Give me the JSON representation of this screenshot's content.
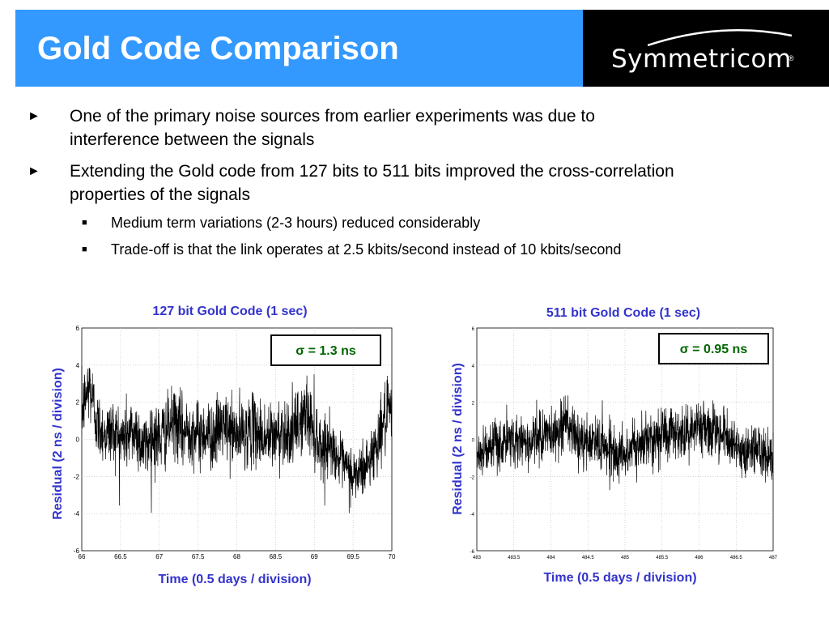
{
  "title": "Gold Code Comparison",
  "logo": {
    "text": "Symmetricom",
    "reg": "®"
  },
  "bullets": [
    {
      "line1": "One of the primary noise sources from earlier experiments was due to",
      "line2": "interference between the signals"
    },
    {
      "line1": "Extending the Gold code from 127 bits to 511 bits improved the cross-correlation",
      "line2": "properties of the signals"
    }
  ],
  "subbullets": [
    "Medium term variations (2-3 hours) reduced considerably",
    "Trade-off is that the link operates at 2.5 kbits/second instead of 10 kbits/second"
  ],
  "colors": {
    "title_bg": "#3399ff",
    "label": "#3333cc",
    "sigma": "#006600"
  },
  "chart_data": [
    {
      "type": "line",
      "title": "127 bit Gold Code (1 sec)",
      "xlabel": "Time (0.5 days / division)",
      "ylabel": "Residual (2 ns / division)",
      "annotation": "σ = 1.3 ns",
      "xlim": [
        66,
        70
      ],
      "ylim": [
        -6,
        6
      ],
      "xticks": [
        "66",
        "66.5",
        "67",
        "67.5",
        "68",
        "68.5",
        "69",
        "69.5",
        "70"
      ],
      "yticks": [
        "6",
        "4",
        "2",
        "0",
        "-2",
        "-4",
        "-6"
      ],
      "grid": true,
      "series": [
        {
          "x": [
            66.0,
            66.1,
            66.2,
            66.3,
            66.4,
            66.5,
            66.6,
            66.7,
            66.8,
            66.9,
            67.0,
            67.1,
            67.2,
            67.3,
            67.4,
            67.5,
            67.6,
            67.7,
            67.8,
            67.9,
            68.0,
            68.1,
            68.2,
            68.3,
            68.4,
            68.5,
            68.6,
            68.7,
            68.8,
            68.9,
            69.0,
            69.1,
            69.2,
            69.3,
            69.4,
            69.5,
            69.6,
            69.7,
            69.8,
            69.9,
            70.0
          ],
          "values": [
            1.5,
            3.0,
            0.8,
            0.3,
            0.5,
            0.0,
            0.3,
            0.5,
            -0.5,
            0.2,
            0.0,
            0.5,
            1.0,
            0.3,
            0.6,
            0.2,
            0.4,
            0.1,
            0.8,
            0.5,
            0.2,
            0.4,
            0.6,
            0.3,
            0.0,
            0.2,
            0.5,
            0.3,
            0.8,
            1.5,
            0.5,
            -0.5,
            -0.2,
            -1.0,
            -1.5,
            -2.0,
            -1.8,
            -1.2,
            -0.3,
            1.0,
            1.5
          ],
          "spread": [
            2.0,
            2.2,
            2.0,
            1.8,
            2.0,
            2.0,
            2.2,
            2.0,
            2.0,
            2.2,
            2.2,
            2.0,
            2.0,
            2.2,
            2.0,
            2.0,
            2.0,
            2.0,
            2.0,
            2.0,
            2.0,
            2.0,
            2.0,
            2.0,
            2.2,
            2.0,
            2.0,
            2.0,
            2.0,
            2.2,
            2.2,
            2.0,
            1.5,
            1.5,
            1.5,
            1.8,
            1.8,
            1.5,
            1.8,
            2.0,
            2.0
          ]
        }
      ]
    },
    {
      "type": "line",
      "title": "511 bit Gold Code (1 sec)",
      "xlabel": "Time (0.5 days / division)",
      "ylabel": "Residual (2 ns / division)",
      "annotation": "σ = 0.95 ns",
      "xlim": [
        483,
        487
      ],
      "ylim": [
        -6,
        6
      ],
      "xticks": [
        "483",
        "483.5",
        "484",
        "484.5",
        "485",
        "485.5",
        "486",
        "486.5",
        "487"
      ],
      "yticks": [
        "6",
        "4",
        "2",
        "0",
        "-2",
        "-4",
        "-6"
      ],
      "grid": true,
      "series": [
        {
          "x": [
            483.0,
            483.1,
            483.2,
            483.3,
            483.4,
            483.5,
            483.6,
            483.7,
            483.8,
            483.9,
            484.0,
            484.1,
            484.2,
            484.3,
            484.4,
            484.5,
            484.6,
            484.7,
            484.8,
            484.9,
            485.0,
            485.1,
            485.2,
            485.3,
            485.4,
            485.5,
            485.6,
            485.7,
            485.8,
            485.9,
            486.0,
            486.1,
            486.2,
            486.3,
            486.4,
            486.5,
            486.6,
            486.7,
            486.8,
            486.9,
            487.0
          ],
          "values": [
            -0.8,
            -0.5,
            -0.6,
            -0.3,
            -0.2,
            0.0,
            0.0,
            -0.2,
            0.0,
            0.3,
            0.2,
            0.5,
            1.0,
            0.3,
            -0.2,
            -0.3,
            0.0,
            -0.3,
            -0.5,
            -0.8,
            -0.8,
            -0.5,
            -0.3,
            0.0,
            0.2,
            0.3,
            0.5,
            0.3,
            0.2,
            0.5,
            0.8,
            0.8,
            0.5,
            0.3,
            0.0,
            -0.5,
            -0.8,
            -0.6,
            -0.4,
            -1.0,
            -1.2
          ],
          "spread": [
            1.5,
            1.5,
            1.5,
            1.6,
            1.5,
            1.5,
            1.5,
            1.5,
            1.5,
            1.6,
            1.5,
            1.6,
            1.8,
            1.6,
            1.5,
            1.5,
            1.6,
            1.5,
            1.5,
            1.5,
            1.5,
            1.5,
            1.5,
            1.5,
            1.6,
            1.6,
            1.6,
            1.5,
            1.6,
            1.6,
            1.6,
            1.6,
            1.5,
            1.5,
            1.5,
            1.5,
            1.5,
            1.5,
            1.5,
            1.5,
            1.5
          ]
        }
      ]
    }
  ]
}
